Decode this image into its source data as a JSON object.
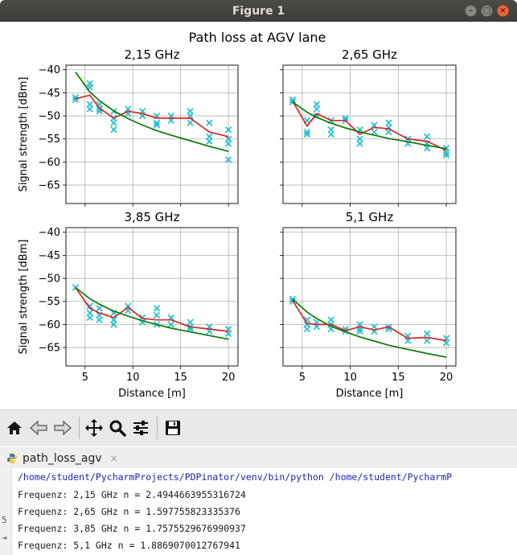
{
  "window": {
    "title": "Figure 1",
    "minimize_glyph": "–",
    "maximize_glyph": "□",
    "close_glyph": "×"
  },
  "figure": {
    "suptitle": "Path loss at AGV lane"
  },
  "colors": {
    "measured": "#17becf",
    "mean": "#d62728",
    "fit": "#0a7a0a"
  },
  "chart_data": [
    {
      "type": "line",
      "title": "2,15 GHz",
      "xlabel": "",
      "ylabel": "Signal strength [dBm]",
      "xlim": [
        3,
        21
      ],
      "ylim": [
        -69,
        -39
      ],
      "xticks": [
        5,
        10,
        15,
        20
      ],
      "yticks": [
        -40,
        -45,
        -50,
        -55,
        -60,
        -65
      ],
      "xtick_labels": [
        "",
        "",
        "",
        ""
      ],
      "ytick_labels": [
        "−40",
        "−45",
        "−50",
        "−55",
        "−60",
        "−65"
      ],
      "grid": true,
      "scatter": [
        [
          4,
          -46
        ],
        [
          4,
          -46.5
        ],
        [
          5.5,
          -43
        ],
        [
          5.5,
          -43.8
        ],
        [
          5.5,
          -47.5
        ],
        [
          5.5,
          -48.5
        ],
        [
          6.5,
          -47.5
        ],
        [
          6.5,
          -48.5
        ],
        [
          6.5,
          -49
        ],
        [
          8,
          -49
        ],
        [
          8,
          -50.5
        ],
        [
          8,
          -51.5
        ],
        [
          8,
          -53
        ],
        [
          9.5,
          -48.5
        ],
        [
          9.5,
          -49.5
        ],
        [
          11,
          -49
        ],
        [
          11,
          -50
        ],
        [
          12.5,
          -50
        ],
        [
          12.5,
          -51.5
        ],
        [
          12.5,
          -52
        ],
        [
          14,
          -50
        ],
        [
          14,
          -51
        ],
        [
          16,
          -49
        ],
        [
          16,
          -50
        ],
        [
          16,
          -51.5
        ],
        [
          18,
          -51.5
        ],
        [
          18,
          -54.5
        ],
        [
          18,
          -55.5
        ],
        [
          20,
          -53
        ],
        [
          20,
          -55
        ],
        [
          20,
          -56
        ],
        [
          20,
          -59.5
        ]
      ],
      "series": [
        {
          "x": [
            4,
            5.5,
            6.5,
            8,
            9.5,
            11,
            12.5,
            14,
            16,
            18,
            20
          ],
          "values": [
            -46.3,
            -45.5,
            -48.3,
            -50.5,
            -49,
            -49.5,
            -50.5,
            -50.5,
            -50.5,
            -53.5,
            -54.5
          ]
        },
        {
          "x": [
            4,
            5.5,
            6.5,
            8,
            9.5,
            11,
            12.5,
            14,
            16,
            18,
            20
          ],
          "values": [
            -40.5,
            -44.8,
            -46.7,
            -48.9,
            -50.6,
            -52.0,
            -53.2,
            -54.2,
            -55.4,
            -56.6,
            -57.7
          ]
        }
      ]
    },
    {
      "type": "line",
      "title": "2,65 GHz",
      "xlabel": "",
      "ylabel": "",
      "xlim": [
        3,
        21
      ],
      "ylim": [
        -69,
        -39
      ],
      "xticks": [
        5,
        10,
        15,
        20
      ],
      "yticks": [
        -40,
        -45,
        -50,
        -55,
        -60,
        -65
      ],
      "xtick_labels": [
        "",
        "",
        "",
        ""
      ],
      "ytick_labels": [
        "",
        "",
        "",
        "",
        "",
        ""
      ],
      "grid": true,
      "scatter": [
        [
          4,
          -46.5
        ],
        [
          4,
          -47
        ],
        [
          5.5,
          -51
        ],
        [
          5.5,
          -53.5
        ],
        [
          5.5,
          -54
        ],
        [
          6.5,
          -47.5
        ],
        [
          6.5,
          -48.5
        ],
        [
          6.5,
          -50
        ],
        [
          8,
          -51
        ],
        [
          8,
          -53
        ],
        [
          8,
          -54
        ],
        [
          9.5,
          -50.5
        ],
        [
          9.5,
          -51
        ],
        [
          11,
          -53
        ],
        [
          11,
          -55
        ],
        [
          11,
          -56
        ],
        [
          12.5,
          -52
        ],
        [
          12.5,
          -53.5
        ],
        [
          14,
          -51.5
        ],
        [
          14,
          -52.5
        ],
        [
          14,
          -53.5
        ],
        [
          16,
          -55
        ],
        [
          16,
          -56
        ],
        [
          18,
          -54.5
        ],
        [
          18,
          -56
        ],
        [
          18,
          -57
        ],
        [
          20,
          -57
        ],
        [
          20,
          -58
        ],
        [
          20,
          -58.5
        ]
      ],
      "series": [
        {
          "x": [
            4,
            5.5,
            6.5,
            8,
            9.5,
            11,
            12.5,
            14,
            16,
            18,
            20
          ],
          "values": [
            -46.8,
            -52.2,
            -49.5,
            -51,
            -51,
            -54,
            -52.5,
            -52.8,
            -55,
            -55.5,
            -57.5
          ]
        },
        {
          "x": [
            4,
            5.5,
            6.5,
            8,
            9.5,
            11,
            12.5,
            14,
            16,
            18,
            20
          ],
          "values": [
            -47.0,
            -49.2,
            -50.3,
            -51.6,
            -52.6,
            -53.5,
            -54.2,
            -54.9,
            -55.6,
            -56.4,
            -57.1
          ]
        }
      ]
    },
    {
      "type": "line",
      "title": "3,85 GHz",
      "xlabel": "Distance [m]",
      "ylabel": "Signal strength [dBm]",
      "xlim": [
        3,
        21
      ],
      "ylim": [
        -69,
        -39
      ],
      "xticks": [
        5,
        10,
        15,
        20
      ],
      "yticks": [
        -40,
        -45,
        -50,
        -55,
        -60,
        -65
      ],
      "xtick_labels": [
        "5",
        "10",
        "15",
        "20"
      ],
      "ytick_labels": [
        "−40",
        "−45",
        "−50",
        "−55",
        "−60",
        "−65"
      ],
      "grid": true,
      "scatter": [
        [
          4,
          -52
        ],
        [
          5.5,
          -56
        ],
        [
          5.5,
          -57.5
        ],
        [
          5.5,
          -58.5
        ],
        [
          6.5,
          -56.5
        ],
        [
          6.5,
          -58
        ],
        [
          6.5,
          -59
        ],
        [
          8,
          -57.5
        ],
        [
          8,
          -59
        ],
        [
          8,
          -60
        ],
        [
          9.5,
          -56
        ],
        [
          9.5,
          -57
        ],
        [
          11,
          -58.5
        ],
        [
          11,
          -59.5
        ],
        [
          12.5,
          -56.5
        ],
        [
          12.5,
          -58
        ],
        [
          12.5,
          -60
        ],
        [
          14,
          -58.5
        ],
        [
          14,
          -60
        ],
        [
          16,
          -59.5
        ],
        [
          16,
          -60.5
        ],
        [
          16,
          -61
        ],
        [
          18,
          -60.5
        ],
        [
          18,
          -61.5
        ],
        [
          20,
          -61
        ],
        [
          20,
          -62
        ]
      ],
      "series": [
        {
          "x": [
            4,
            5.5,
            6.5,
            8,
            9.5,
            11,
            12.5,
            14,
            16,
            18,
            20
          ],
          "values": [
            -52,
            -56.5,
            -57.5,
            -58.5,
            -56.3,
            -58.7,
            -59,
            -59,
            -60.5,
            -61,
            -61.5
          ]
        },
        {
          "x": [
            4,
            5.5,
            6.5,
            8,
            9.5,
            11,
            12.5,
            14,
            16,
            18,
            20
          ],
          "values": [
            -52.0,
            -54.4,
            -55.6,
            -57.1,
            -58.2,
            -59.2,
            -60.0,
            -60.8,
            -61.6,
            -62.4,
            -63.2
          ]
        }
      ]
    },
    {
      "type": "line",
      "title": "5,1 GHz",
      "xlabel": "Distance [m]",
      "ylabel": "",
      "xlim": [
        3,
        21
      ],
      "ylim": [
        -69,
        -39
      ],
      "xticks": [
        5,
        10,
        15,
        20
      ],
      "yticks": [
        -40,
        -45,
        -50,
        -55,
        -60,
        -65
      ],
      "xtick_labels": [
        "5",
        "10",
        "15",
        "20"
      ],
      "ytick_labels": [
        "",
        "",
        "",
        "",
        "",
        ""
      ],
      "grid": true,
      "scatter": [
        [
          4,
          -54.5
        ],
        [
          4,
          -55
        ],
        [
          5.5,
          -59
        ],
        [
          5.5,
          -60
        ],
        [
          5.5,
          -61
        ],
        [
          6.5,
          -59.5
        ],
        [
          6.5,
          -60.5
        ],
        [
          8,
          -59
        ],
        [
          8,
          -60
        ],
        [
          8,
          -61
        ],
        [
          9.5,
          -61
        ],
        [
          9.5,
          -61.5
        ],
        [
          11,
          -60
        ],
        [
          11,
          -61
        ],
        [
          11,
          -61.5
        ],
        [
          12.5,
          -60.5
        ],
        [
          12.5,
          -61.5
        ],
        [
          14,
          -60.5
        ],
        [
          14,
          -61
        ],
        [
          16,
          -62.5
        ],
        [
          16,
          -63.5
        ],
        [
          18,
          -62
        ],
        [
          18,
          -63.5
        ],
        [
          20,
          -63
        ],
        [
          20,
          -64
        ]
      ],
      "series": [
        {
          "x": [
            4,
            5.5,
            6.5,
            8,
            9.5,
            11,
            12.5,
            14,
            16,
            18,
            20
          ],
          "values": [
            -54.8,
            -59.8,
            -60,
            -60,
            -61.3,
            -60.5,
            -61.2,
            -60.5,
            -63,
            -62.8,
            -63.5
          ]
        },
        {
          "x": [
            4,
            5.5,
            6.5,
            8,
            9.5,
            11,
            12.5,
            14,
            16,
            18,
            20
          ],
          "values": [
            -54.5,
            -57.3,
            -58.7,
            -60.4,
            -61.6,
            -62.7,
            -63.6,
            -64.5,
            -65.4,
            -66.3,
            -67.1
          ]
        }
      ]
    }
  ],
  "toolbar": {
    "buttons": [
      {
        "name": "home-button",
        "icon": "home-icon"
      },
      {
        "name": "back-button",
        "icon": "arrow-left-icon"
      },
      {
        "name": "forward-button",
        "icon": "arrow-right-icon"
      },
      {
        "name": "pan-button",
        "icon": "move-icon"
      },
      {
        "name": "zoom-button",
        "icon": "magnifier-icon"
      },
      {
        "name": "subplots-button",
        "icon": "sliders-icon"
      },
      {
        "name": "save-button",
        "icon": "floppy-icon"
      }
    ]
  },
  "run_panel": {
    "tab_label": "path_loss_agv",
    "tab_close": "×",
    "command": "/home/student/PycharmProjects/PDPinator/venv/bin/python /home/student/PycharmP",
    "lines": [
      "Frequenz: 2,15 GHz n = 2.4944663955316724",
      "Frequenz: 2,65 GHz n = 1.597755823335376",
      "Frequenz: 3,85 GHz n = 1.7575529676990937",
      "Frequenz: 5,1 GHz n = 1.8869070012767941"
    ],
    "gutter_marks": [
      "5",
      "⇥"
    ]
  }
}
